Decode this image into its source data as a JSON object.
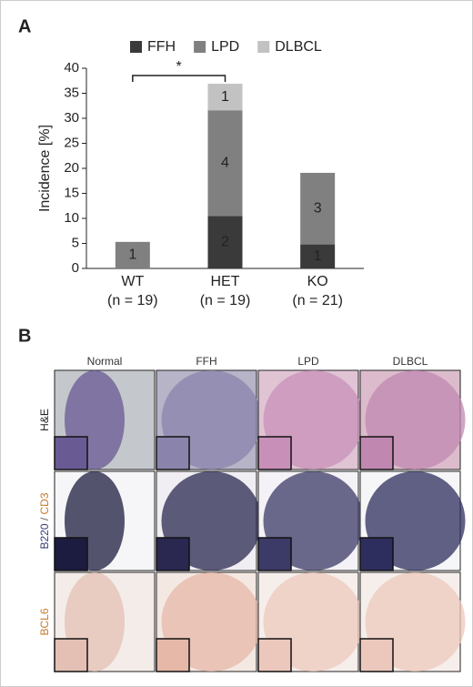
{
  "chart_data": {
    "type": "stacked-bar",
    "panel_label": "A",
    "y_label": "Incidence [%]",
    "categories": [
      "WT",
      "HET",
      "KO"
    ],
    "sample_sizes": [
      "(n = 19)",
      "(n = 19)",
      "(n = 21)"
    ],
    "series": [
      {
        "name": "FFH",
        "color": "#3a3a3a",
        "values": [
          0,
          10.5,
          4.8
        ],
        "counts": [
          null,
          2,
          1
        ]
      },
      {
        "name": "LPD",
        "color": "#808080",
        "values": [
          5.3,
          21.1,
          14.3
        ],
        "counts": [
          1,
          4,
          3
        ]
      },
      {
        "name": "DLBCL",
        "color": "#c2c2c2",
        "values": [
          0,
          5.3,
          0
        ],
        "counts": [
          null,
          1,
          null
        ]
      }
    ],
    "ylim": [
      0,
      40
    ],
    "yticks": [
      0,
      5,
      10,
      15,
      20,
      25,
      30,
      35,
      40
    ],
    "significance": {
      "label": "*",
      "between": [
        0,
        1
      ]
    }
  },
  "micrographs": {
    "panel_label": "B",
    "columns": [
      "Normal",
      "FFH",
      "LPD",
      "DLBCL"
    ],
    "rows": [
      {
        "parts": [
          {
            "text": "H&E",
            "color": "#222222"
          }
        ]
      },
      {
        "parts": [
          {
            "text": "B220",
            "color": "#3a3a7a"
          },
          {
            "text": " / ",
            "color": "#666666"
          },
          {
            "text": "CD3",
            "color": "#c8782a"
          }
        ]
      },
      {
        "parts": [
          {
            "text": "BCL6",
            "color": "#c8782a"
          }
        ]
      }
    ]
  }
}
